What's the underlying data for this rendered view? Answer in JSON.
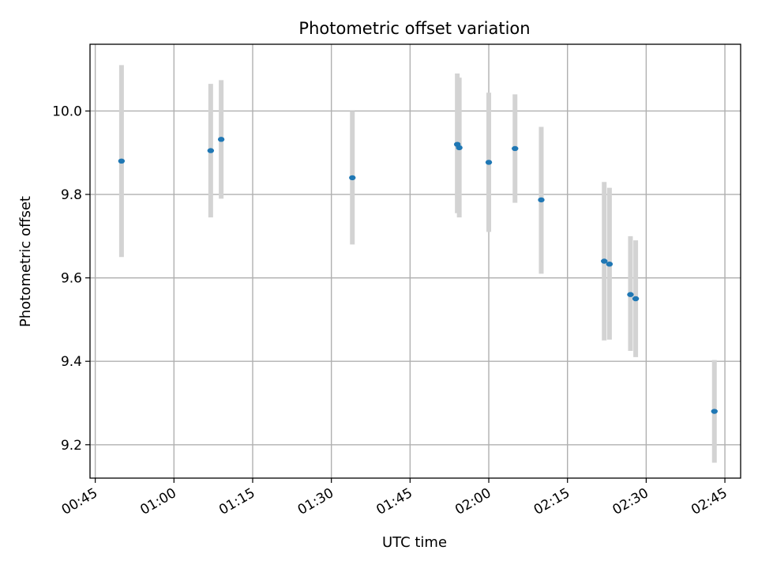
{
  "chart_data": {
    "type": "scatter",
    "title": "Photometric offset variation",
    "xlabel": "UTC time",
    "ylabel": "Photometric offset",
    "xlim": [
      "00:44",
      "02:48"
    ],
    "ylim": [
      9.12,
      10.16
    ],
    "x_ticks": [
      "00:45",
      "01:00",
      "01:15",
      "01:30",
      "01:45",
      "02:00",
      "02:15",
      "02:30",
      "02:45"
    ],
    "y_ticks": [
      9.2,
      9.4,
      9.6,
      9.8,
      10.0
    ],
    "y_tick_labels": [
      "9.2",
      "9.4",
      "9.6",
      "9.8",
      "10.0"
    ],
    "grid": true,
    "colors": {
      "marker": "#1f77b4",
      "errorbar": "#d3d3d3",
      "grid": "#b0b0b0"
    },
    "points": [
      {
        "time": "00:50",
        "y": 9.88,
        "lo": 9.65,
        "hi": 10.11
      },
      {
        "time": "01:07",
        "y": 9.905,
        "lo": 9.745,
        "hi": 10.065
      },
      {
        "time": "01:09",
        "y": 9.932,
        "lo": 9.79,
        "hi": 10.074
      },
      {
        "time": "01:34",
        "y": 9.84,
        "lo": 9.68,
        "hi": 10.0
      },
      {
        "time": "01:54",
        "y": 9.92,
        "lo": 9.755,
        "hi": 10.09
      },
      {
        "time": "01:54",
        "y": 9.912,
        "lo": 9.745,
        "hi": 10.08
      },
      {
        "time": "02:00",
        "y": 9.877,
        "lo": 9.71,
        "hi": 10.044
      },
      {
        "time": "02:05",
        "y": 9.91,
        "lo": 9.78,
        "hi": 10.04
      },
      {
        "time": "02:10",
        "y": 9.787,
        "lo": 9.61,
        "hi": 9.962
      },
      {
        "time": "02:22",
        "y": 9.64,
        "lo": 9.45,
        "hi": 9.83
      },
      {
        "time": "02:23",
        "y": 9.633,
        "lo": 9.452,
        "hi": 9.816
      },
      {
        "time": "02:27",
        "y": 9.56,
        "lo": 9.425,
        "hi": 9.7
      },
      {
        "time": "02:28",
        "y": 9.55,
        "lo": 9.41,
        "hi": 9.69
      },
      {
        "time": "02:43",
        "y": 9.28,
        "lo": 9.157,
        "hi": 9.403
      }
    ]
  }
}
